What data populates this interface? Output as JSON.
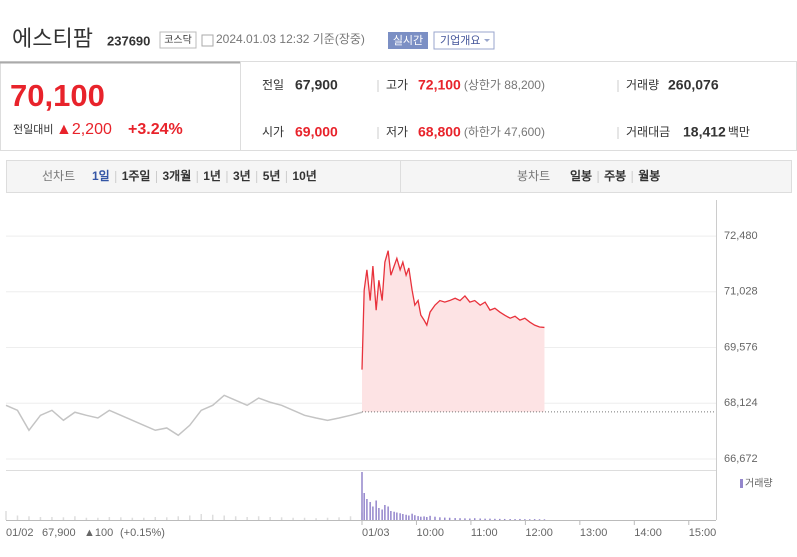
{
  "header": {
    "name": "에스티팜",
    "code": "237690",
    "market": "코스닥",
    "time": "2024.01.03 12:32 기준(장중)",
    "realtime": "실시간",
    "company": "기업개요"
  },
  "quote": {
    "price": "70,100",
    "change_label": "전일대비",
    "change": "▲2,200",
    "change_pct": "+3.24%",
    "stats": [
      {
        "label": "전일",
        "value": "67,900"
      },
      {
        "label": "고가",
        "value": "72,100",
        "note": "(상한가 88,200)",
        "color": "#e8232b"
      },
      {
        "label": "거래량",
        "value": "260,076"
      },
      {
        "label": "시가",
        "value": "69,000",
        "color": "#e8232b"
      },
      {
        "label": "저가",
        "value": "68,800",
        "note": "(하한가 47,600)",
        "color": "#e8232b"
      },
      {
        "label": "거래대금",
        "value": "18,412",
        "unit": "백만"
      }
    ]
  },
  "tabs": {
    "line_label": "선차트",
    "line_periods": [
      "1일",
      "1주일",
      "3개월",
      "1년",
      "3년",
      "5년",
      "10년"
    ],
    "candle_label": "봉차트",
    "candle_periods": [
      "일봉",
      "주봉",
      "월봉"
    ]
  },
  "chart_data": {
    "type": "line",
    "ylim": [
      66385,
      73420
    ],
    "yticks": [
      {
        "value": 72480,
        "label": "72,480"
      },
      {
        "value": 71028,
        "label": "71,028"
      },
      {
        "value": 69576,
        "label": "69,576"
      },
      {
        "value": 68124,
        "label": "68,124"
      },
      {
        "value": 66672,
        "label": "66,672"
      }
    ],
    "xlim": [
      9,
      15.5
    ],
    "xticks": [
      {
        "value": 9,
        "label": "01/03"
      },
      {
        "value": 10,
        "label": "10:00"
      },
      {
        "value": 11,
        "label": "11:00"
      },
      {
        "value": 12,
        "label": "12:00"
      },
      {
        "value": 13,
        "label": "13:00"
      },
      {
        "value": 14,
        "label": "14:00"
      },
      {
        "value": 15,
        "label": "15:00"
      }
    ],
    "reference": 67900,
    "series": [
      {
        "color": "#e8323c",
        "fill": "#fde3e4",
        "x": [
          9.0,
          9.04,
          9.09,
          9.15,
          9.2,
          9.26,
          9.31,
          9.37,
          9.42,
          9.48,
          9.53,
          9.59,
          9.64,
          9.7,
          9.75,
          9.81,
          9.86,
          9.92,
          9.97,
          10.03,
          10.08,
          10.14,
          10.19,
          10.25,
          10.34,
          10.43,
          10.52,
          10.61,
          10.71,
          10.8,
          10.89,
          10.98,
          11.07,
          11.17,
          11.26,
          11.35,
          11.44,
          11.53,
          11.62,
          11.72,
          11.81,
          11.9,
          11.99,
          12.08,
          12.17,
          12.26,
          12.35
        ],
        "values": [
          69000,
          71070,
          71600,
          70800,
          71700,
          70550,
          71330,
          70800,
          71800,
          72100,
          71460,
          71700,
          71900,
          71600,
          71800,
          71460,
          71650,
          71070,
          70680,
          70800,
          70420,
          70290,
          70160,
          70500,
          70680,
          70800,
          70760,
          70800,
          70860,
          70800,
          70920,
          70760,
          70800,
          70680,
          70760,
          70550,
          70600,
          70500,
          70420,
          70340,
          70390,
          70290,
          70340,
          70240,
          70160,
          70110,
          70100
        ]
      }
    ],
    "volume": {
      "name": "거래량",
      "color": "#9486cc",
      "values": [
        32000,
        18000,
        14000,
        12000,
        9000,
        13000,
        8000,
        7000,
        10000,
        9000,
        6000,
        5500,
        5000,
        4500,
        4000,
        3500,
        3000,
        4200,
        3200,
        2600,
        2200,
        2400,
        2000,
        2800,
        2200,
        1800,
        1600,
        1500,
        1300,
        1200,
        1100,
        1000,
        1200,
        1000,
        900,
        900,
        800,
        750,
        700,
        650,
        600,
        700,
        550,
        500,
        600,
        500,
        450
      ]
    },
    "previous": {
      "label": "01/02",
      "close": "67,900",
      "change": "▲100",
      "change_pct": "(+0.15%)",
      "color": "#c4c4c4",
      "values": [
        68070,
        67940,
        67420,
        67810,
        67940,
        67680,
        67890,
        67810,
        67740,
        67940,
        67810,
        67680,
        67550,
        67420,
        67480,
        67290,
        67550,
        67940,
        68070,
        68330,
        68200,
        68070,
        68260,
        68150,
        68070,
        67940,
        67810,
        67740,
        67680,
        67740,
        67810,
        67890
      ],
      "volume": [
        6000,
        3000,
        2500,
        2000,
        2000,
        1800,
        2500,
        1500,
        1500,
        2000,
        1800,
        1500,
        1500,
        2000,
        1800,
        2500,
        3000,
        4000,
        3500,
        3000,
        2500,
        2000,
        2500,
        2000,
        1800,
        1500,
        1500,
        1200,
        1500,
        1800,
        2500,
        5000
      ]
    }
  }
}
